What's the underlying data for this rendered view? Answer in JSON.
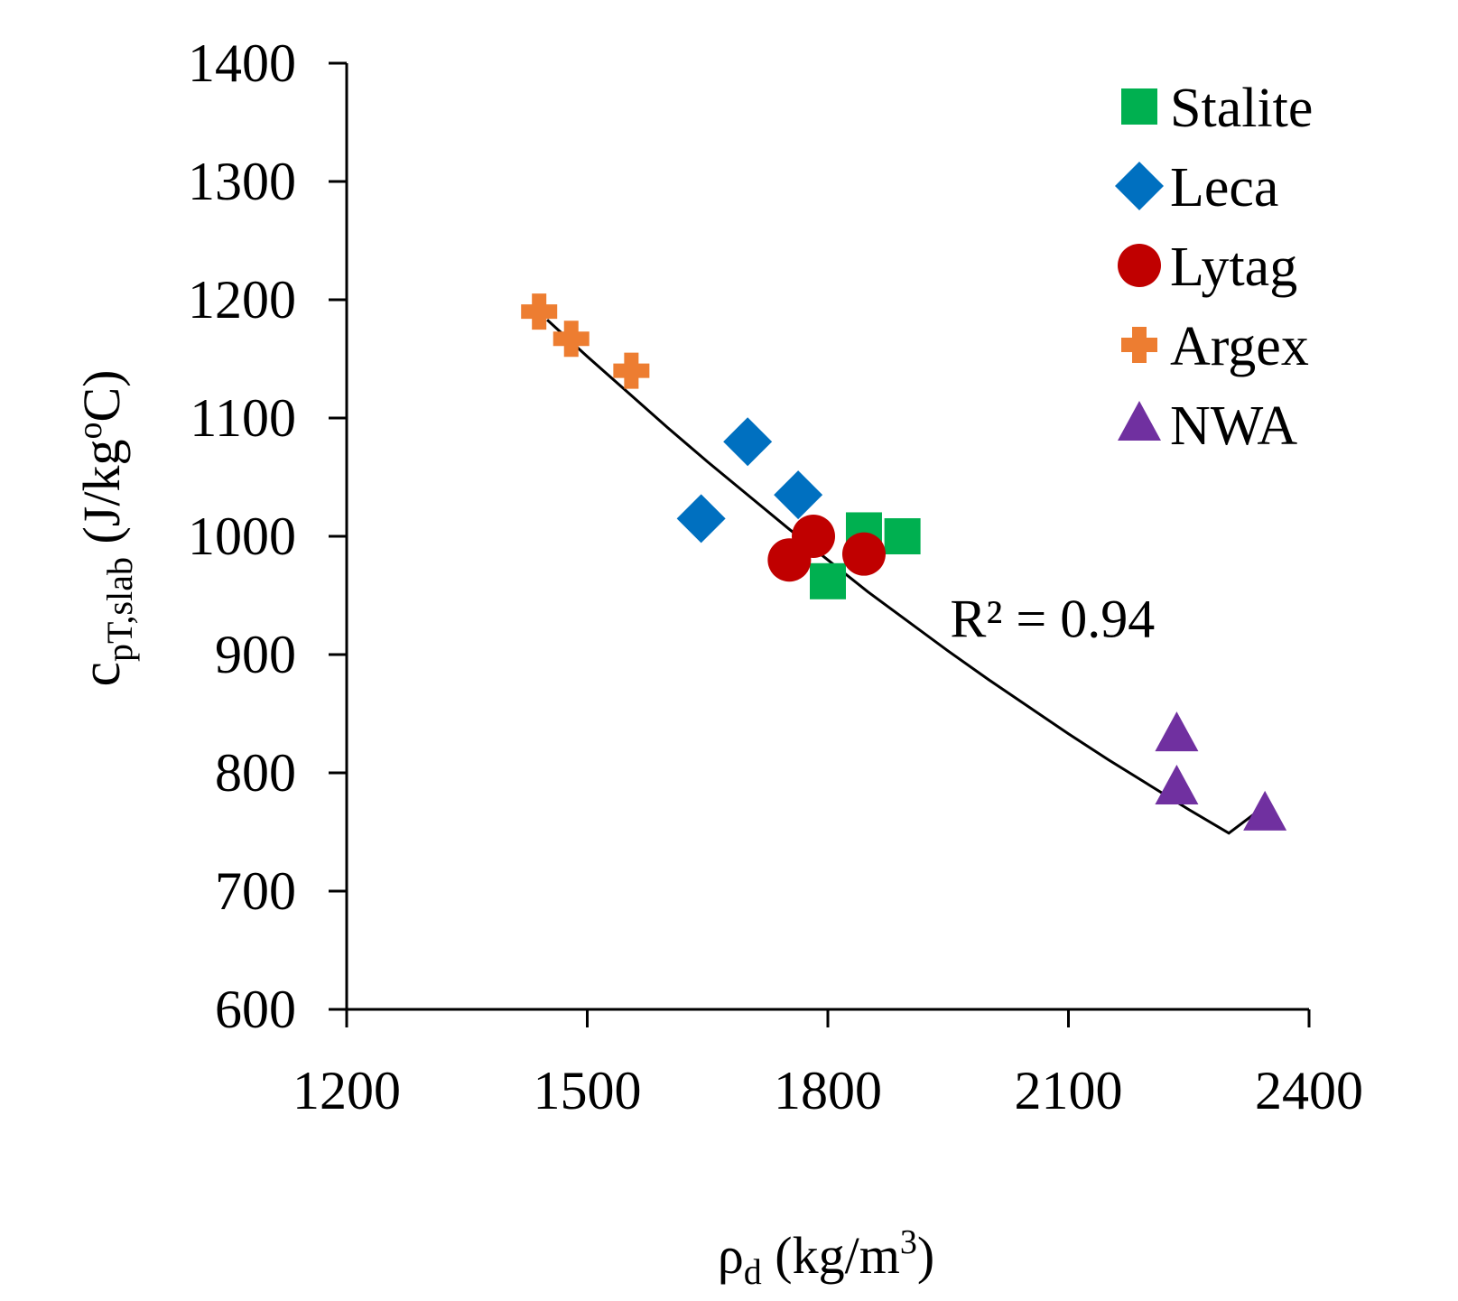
{
  "chart_data": {
    "type": "scatter",
    "title": "",
    "xlabel": "ρd (kg/m3)",
    "xlabel_parts": {
      "main": "ρ",
      "sub": "d",
      "unit_open": " (kg/m",
      "sup": "3",
      "unit_close": ")"
    },
    "ylabel": "cpT,slab (J/kgoC)",
    "ylabel_parts": {
      "main": "c",
      "sub": "pT,slab",
      "unit_open": " (J/kg",
      "sup": "o",
      "unit_close": "C)"
    },
    "xlim": [
      1200,
      2400
    ],
    "ylim": [
      600,
      1400
    ],
    "xticks": [
      1200,
      1500,
      1800,
      2100,
      2400
    ],
    "yticks": [
      600,
      700,
      800,
      900,
      1000,
      1100,
      1200,
      1300,
      1400
    ],
    "grid": false,
    "legend_position": "top-right",
    "series": [
      {
        "name": "Stalite",
        "marker": "square",
        "color": "#00b050",
        "points": [
          [
            1845,
            1005
          ],
          [
            1893,
            1000
          ],
          [
            1800,
            962
          ]
        ]
      },
      {
        "name": "Leca",
        "marker": "diamond",
        "color": "#0070c0",
        "points": [
          [
            1700,
            1080
          ],
          [
            1763,
            1035
          ],
          [
            1642,
            1015
          ]
        ]
      },
      {
        "name": "Lytag",
        "marker": "circle",
        "color": "#c00000",
        "points": [
          [
            1782,
            1000
          ],
          [
            1752,
            980
          ],
          [
            1845,
            985
          ]
        ]
      },
      {
        "name": "Argex",
        "marker": "plus",
        "color": "#ed7d31",
        "points": [
          [
            1440,
            1190
          ],
          [
            1480,
            1167
          ],
          [
            1555,
            1140
          ]
        ]
      },
      {
        "name": "NWA",
        "marker": "triangle",
        "color": "#7030a0",
        "points": [
          [
            2235,
            832
          ],
          [
            2235,
            787
          ],
          [
            2345,
            765
          ]
        ]
      }
    ],
    "trendline": {
      "x": [
        1450,
        1500,
        1550,
        1600,
        1650,
        1700,
        1750,
        1800,
        1850,
        1900,
        1950,
        2000,
        2050,
        2100,
        2150,
        2200,
        2250,
        2300,
        2345
      ],
      "y": [
        1183,
        1152,
        1122,
        1092,
        1063,
        1035,
        1007,
        980,
        953,
        928,
        903,
        879,
        856,
        833,
        811,
        790,
        769,
        749,
        772
      ],
      "color": "#000000"
    },
    "annotation": {
      "text": "R² = 0.94",
      "x": 2110,
      "y": 930
    }
  }
}
